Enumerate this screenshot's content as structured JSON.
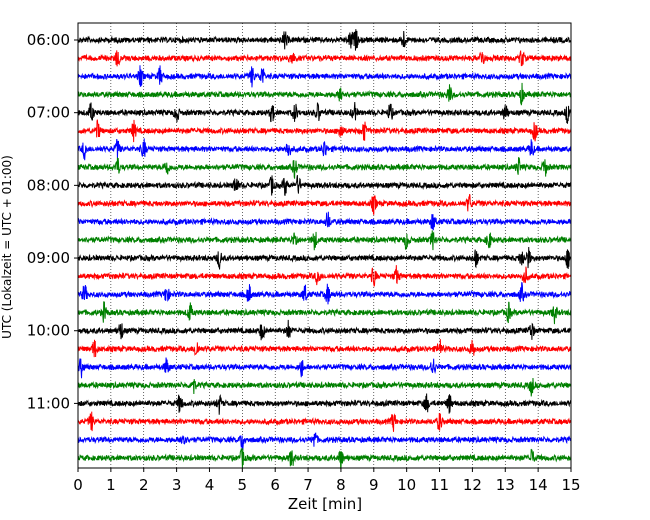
{
  "chart_data": {
    "type": "line",
    "title": "",
    "xlabel": "Zeit  [min]",
    "ylabel": "UTC (Lokalzeit = UTC + 01:00)",
    "xlim": [
      0,
      15
    ],
    "x_ticks": [
      0,
      1,
      2,
      3,
      4,
      5,
      6,
      7,
      8,
      9,
      10,
      11,
      12,
      13,
      14,
      15
    ],
    "y_tick_labels": [
      "06:00",
      "07:00",
      "08:00",
      "09:00",
      "10:00",
      "11:00"
    ],
    "y_tick_rows": [
      0,
      4,
      8,
      12,
      16,
      20
    ],
    "grid": "vertical dotted",
    "row_interval_min": 15,
    "row_colors": [
      "#000000",
      "#ff0000",
      "#0000ff",
      "#008000"
    ],
    "series": [
      {
        "start": "06:00",
        "bursts": [
          8.3,
          8.45,
          9.9,
          6.3
        ]
      },
      {
        "start": "06:15",
        "bursts": [
          6.5,
          12.3,
          13.5,
          1.2
        ]
      },
      {
        "start": "06:30",
        "bursts": [
          1.9,
          2.5,
          5.3,
          5.6
        ]
      },
      {
        "start": "06:45",
        "bursts": [
          11.3,
          13.5,
          8.0
        ]
      },
      {
        "start": "07:00",
        "bursts": [
          0.4,
          3.0,
          5.9,
          6.6,
          7.3,
          8.4,
          9.5,
          13.0,
          14.9
        ]
      },
      {
        "start": "07:15",
        "bursts": [
          0.6,
          1.7,
          8.0,
          8.7,
          13.9
        ]
      },
      {
        "start": "07:30",
        "bursts": [
          0.2,
          1.2,
          2.0,
          6.4,
          7.5,
          13.8
        ]
      },
      {
        "start": "07:45",
        "bursts": [
          1.2,
          2.7,
          6.6,
          13.4,
          14.2
        ]
      },
      {
        "start": "08:00",
        "bursts": [
          4.8,
          5.9,
          6.7,
          6.3
        ]
      },
      {
        "start": "08:15",
        "bursts": [
          9.0,
          11.9
        ]
      },
      {
        "start": "08:30",
        "bursts": [
          10.8,
          7.6
        ]
      },
      {
        "start": "08:45",
        "bursts": [
          6.6,
          7.2,
          10.0,
          10.8,
          12.5
        ]
      },
      {
        "start": "09:00",
        "bursts": [
          4.3,
          12.1,
          13.5,
          14.9,
          13.7
        ]
      },
      {
        "start": "09:15",
        "bursts": [
          9.0,
          9.7,
          7.3,
          13.6
        ]
      },
      {
        "start": "09:30",
        "bursts": [
          0.2,
          2.7,
          5.2,
          6.9,
          7.6,
          13.5
        ]
      },
      {
        "start": "09:45",
        "bursts": [
          0.8,
          3.4,
          13.1,
          14.5
        ]
      },
      {
        "start": "10:00",
        "bursts": [
          1.3,
          5.6,
          6.4,
          13.8
        ]
      },
      {
        "start": "10:15",
        "bursts": [
          0.5,
          3.6,
          11.0,
          12.0
        ]
      },
      {
        "start": "10:30",
        "bursts": [
          0.1,
          2.7,
          6.8,
          10.8
        ]
      },
      {
        "start": "10:45",
        "bursts": [
          3.5,
          13.8
        ]
      },
      {
        "start": "11:00",
        "bursts": [
          3.1,
          4.3,
          10.6,
          11.3
        ]
      },
      {
        "start": "11:15",
        "bursts": [
          0.4,
          9.6,
          11.0
        ]
      },
      {
        "start": "11:30",
        "bursts": [
          3.2,
          5.0,
          7.2
        ]
      },
      {
        "start": "11:45",
        "bursts": [
          5.0,
          6.5,
          8.0,
          13.8
        ]
      }
    ]
  }
}
